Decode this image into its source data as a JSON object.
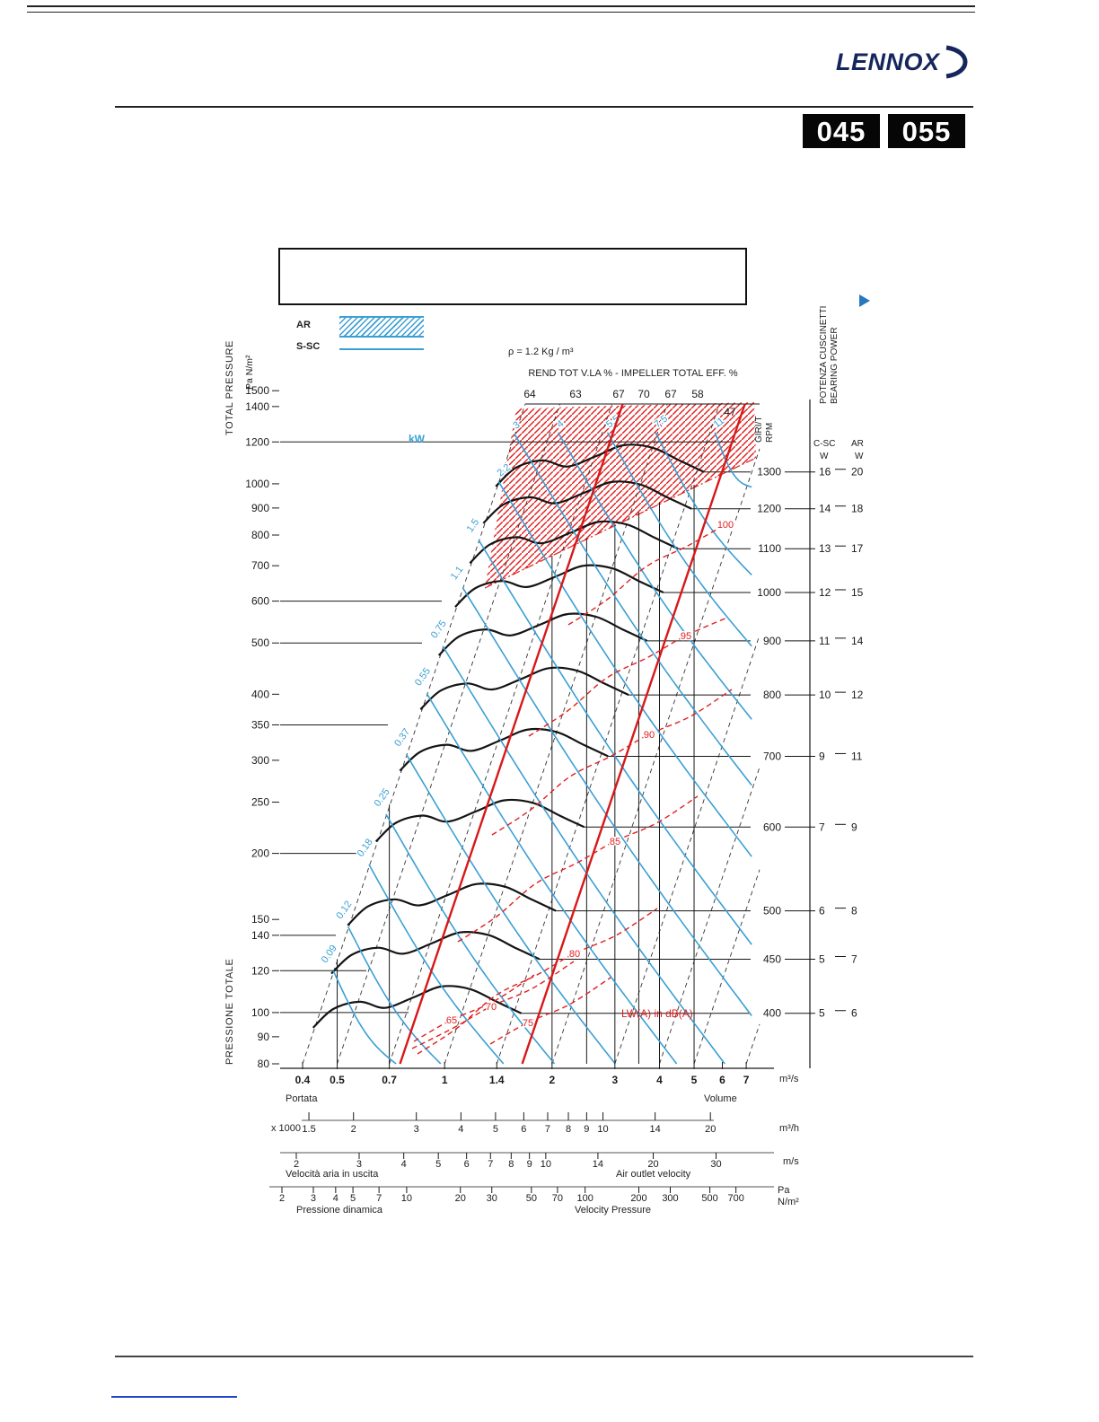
{
  "page": {
    "brand": "LENNOX",
    "badges": [
      "045",
      "055"
    ]
  },
  "chart_data": {
    "type": "fan-performance-curve",
    "pressure_axis": {
      "title_en": "TOTAL PRESSURE",
      "title_it": "PRESSIONE TOTALE",
      "unit": "Pa  N/m²",
      "ticks": [
        "1500",
        "1400",
        "1200",
        "1000",
        "900",
        "800",
        "700",
        "600",
        "500",
        "400",
        "350",
        "300",
        "250",
        "200",
        "150",
        "140",
        "120",
        "100",
        "90",
        "80"
      ],
      "gridlines": [
        "1200",
        "600",
        "500",
        "350",
        "200",
        "140",
        "120",
        "100"
      ]
    },
    "flow_axis": {
      "label_left": "Portata",
      "label_right": "Volume",
      "unit": "m³/s",
      "ticks": [
        "0.4",
        "0.5",
        "0.7",
        "1",
        "1.4",
        "2",
        "3",
        "4",
        "5",
        "6",
        "7"
      ]
    },
    "flow_axis_m3h": {
      "prefix": "x 1000",
      "unit": "m³/h",
      "ticks": [
        "1.5",
        "2",
        "3",
        "4",
        "5",
        "6",
        "7",
        "8",
        "9",
        "10",
        "14",
        "20"
      ]
    },
    "velocity_axis": {
      "label_left": "Velocità aria in uscita",
      "label_right": "Air outlet velocity",
      "unit": "m/s",
      "ticks": [
        "2",
        "3",
        "4",
        "5",
        "6",
        "7",
        "8",
        "9",
        "10",
        "14",
        "20",
        "30"
      ]
    },
    "dynamic_pressure_axis": {
      "label_left": "Pressione dinamica",
      "label_right": "Velocity Pressure",
      "unit": "Pa\nN/m²",
      "ticks": [
        "2",
        "3",
        "4",
        "5",
        "7",
        "10",
        "20",
        "30",
        "50",
        "70",
        "100",
        "200",
        "300",
        "500",
        "700"
      ]
    },
    "rpm_axis": {
      "header": "GIRI/T\nRPM",
      "values": [
        "1300",
        "1200",
        "1100",
        "1000",
        "900",
        "800",
        "700",
        "600",
        "500",
        "450",
        "400"
      ]
    },
    "bearing_power": {
      "header": "POTENZA CUSCINETTI\nBEARING POWER",
      "col1": "C-SC",
      "col2": "AR",
      "unit": "W",
      "rows": [
        [
          "16",
          "20"
        ],
        [
          "14",
          "18"
        ],
        [
          "13",
          "17"
        ],
        [
          "12",
          "15"
        ],
        [
          "11",
          "14"
        ],
        [
          "10",
          "12"
        ],
        [
          "9",
          "11"
        ],
        [
          "7",
          "9"
        ],
        [
          "6",
          "8"
        ],
        [
          "5",
          "7"
        ],
        [
          "5",
          "6"
        ]
      ]
    },
    "efficiency": {
      "header": "REND TOT V.LA % - IMPELLER TOTAL EFF. %",
      "values": [
        "64",
        "63",
        "67",
        "70",
        "67",
        "58"
      ],
      "extra": "47"
    },
    "density": "ρ = 1.2 Kg / m³",
    "power_curves": {
      "unit_label": "kW",
      "color": "#3b9fd4",
      "side_labels": [
        "0.09",
        "0.12",
        "0.18",
        "0.25",
        "0.37",
        "0.55",
        "0.75",
        "1.1",
        "1.5"
      ],
      "top_labels": [
        "2.2",
        "3",
        "4",
        "5.5",
        "7.5",
        "11"
      ]
    },
    "noise_curves": {
      "label": "LW(A) in dB(A)",
      "color": "#e02020",
      "values": [
        "65",
        "70",
        "75",
        "80",
        "85",
        "90",
        "95",
        "100"
      ]
    },
    "legend": {
      "ar": "AR",
      "ssc": "S-SC"
    }
  }
}
